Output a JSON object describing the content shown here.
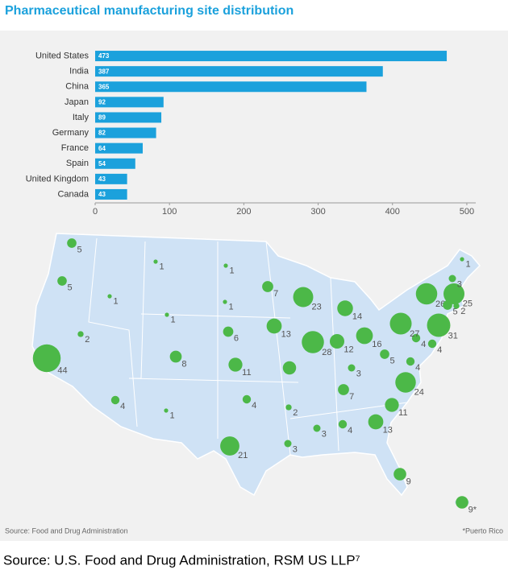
{
  "caption": "Source: U.S. Food and Drug Administration, RSM US LLP⁷",
  "chart_data": [
    {
      "type": "bar",
      "orientation": "horizontal",
      "title": "Pharmaceutical manufacturing site distribution",
      "categories": [
        "United States",
        "India",
        "China",
        "Japan",
        "Italy",
        "Germany",
        "France",
        "Spain",
        "United Kingdom",
        "Canada"
      ],
      "values": [
        473,
        387,
        365,
        92,
        89,
        82,
        64,
        54,
        43,
        43
      ],
      "color": "#1ba1dc",
      "xlim": [
        0,
        512
      ],
      "xticks": [
        0,
        100,
        200,
        300,
        400,
        500
      ],
      "grid": false
    },
    {
      "type": "bubble-map",
      "color": "#4cb848",
      "values": [
        5,
        5,
        2,
        44,
        1,
        1,
        4,
        1,
        1,
        8,
        1,
        1,
        6,
        11,
        4,
        21,
        3,
        7,
        23,
        13,
        28,
        10,
        14,
        12,
        16,
        5,
        3,
        2,
        3,
        4,
        13,
        11,
        24,
        7,
        4,
        4,
        4,
        27,
        26,
        31,
        5,
        25,
        2,
        3,
        1,
        9,
        9
      ],
      "value_labels": [
        "5",
        "5",
        "2",
        "44",
        "1",
        "1",
        "4",
        "1",
        "1",
        "8",
        "1",
        "1",
        "6",
        "11",
        "4",
        "21",
        "3",
        "7",
        "23",
        "13",
        "28",
        null,
        "14",
        "12",
        "16",
        "5",
        "3",
        "2",
        "3",
        "4",
        "13",
        "11",
        "24",
        "7",
        "4",
        "4",
        "4",
        "27",
        "26",
        "31",
        "5",
        "25",
        "2",
        "3",
        "1",
        "9",
        "9*"
      ],
      "source": "Source: Food and Drug Administration",
      "footnote": "*Puerto Rico"
    }
  ]
}
